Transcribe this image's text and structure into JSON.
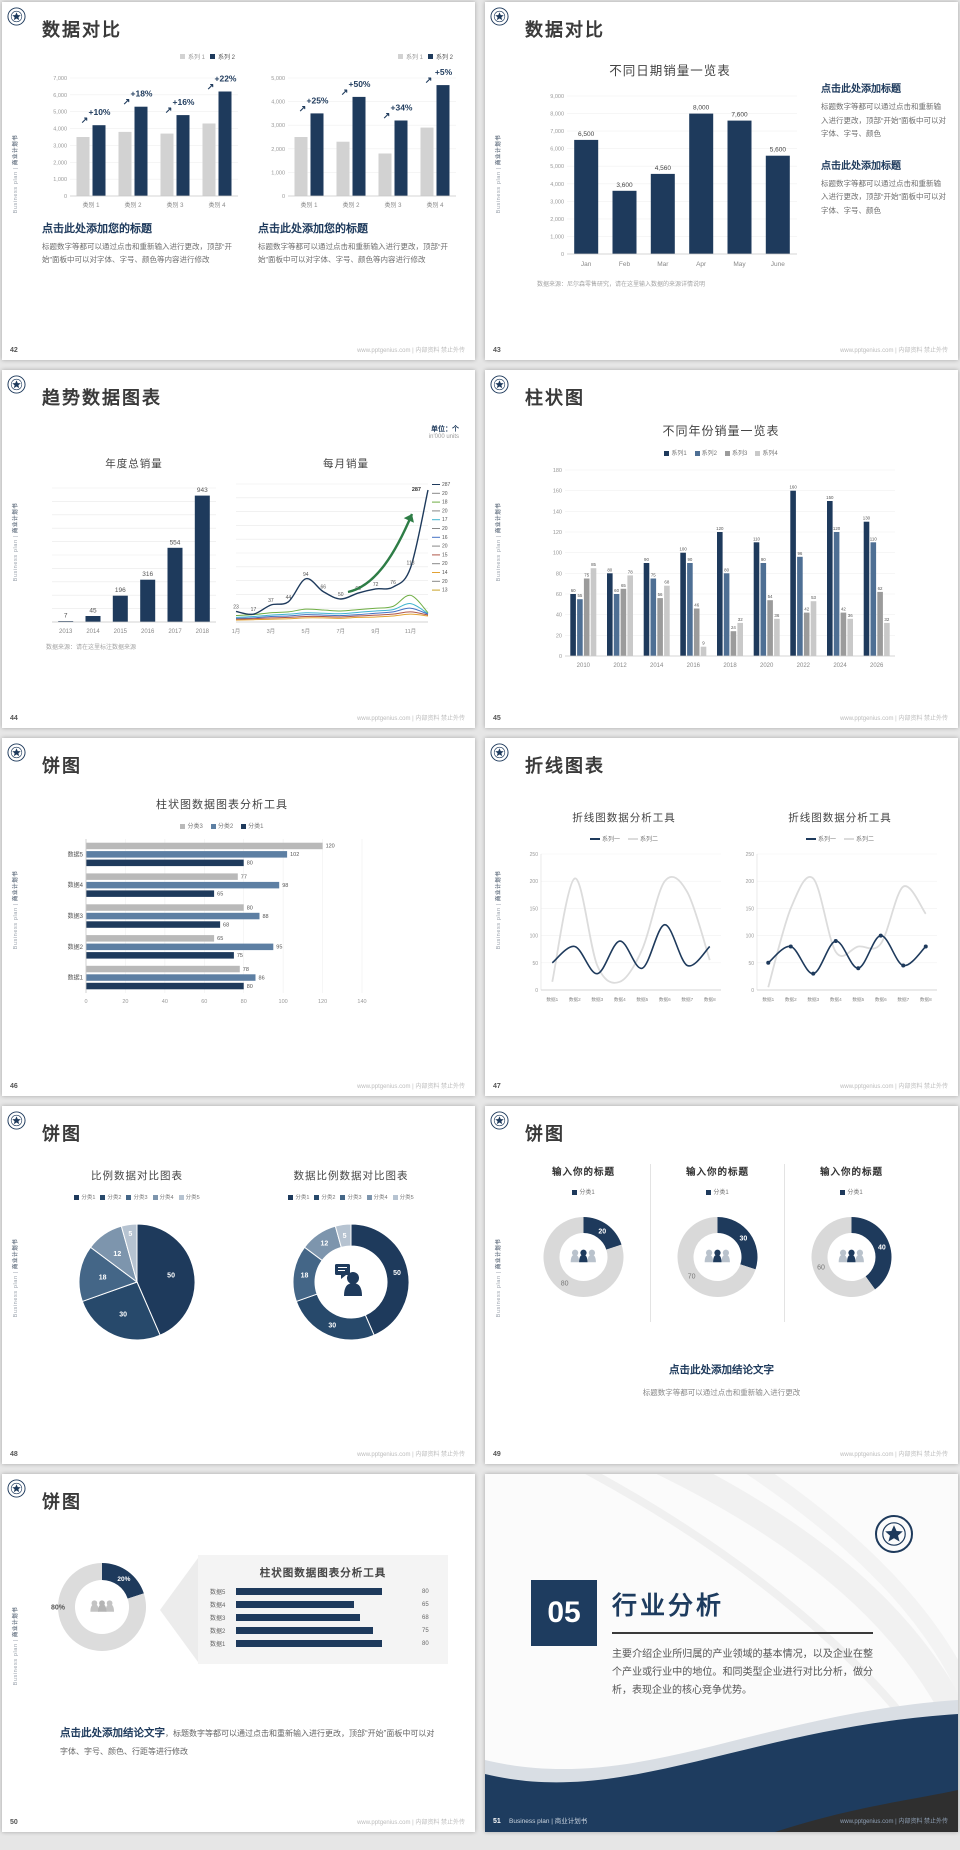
{
  "common": {
    "footer_url": "www.pptgenius.com | 内部资料 禁止外传",
    "sidebar_en": "Business plan | ",
    "sidebar_cn": "商业计划书"
  },
  "colors": {
    "navy": "#1e3a5c",
    "navy2": "#27496b",
    "steel": "#5d7fa3",
    "steel_light": "#7d95ad",
    "pale": "#b6c3d1",
    "gray_bar": "#d2d2d2",
    "gray_line": "#dcdcdc",
    "green": "#6fae44",
    "teal": "#3fb3cf",
    "blue": "#4472c4",
    "red": "#b0574a",
    "orange": "#e2a233",
    "arrow_green": "#2e7d46"
  },
  "slides": {
    "s42": {
      "page": "42",
      "title": "数据对比",
      "charts": [
        {
          "type": "grouped-bar",
          "legend": [
            "系列 1",
            "系列 2"
          ],
          "categories": [
            "类别 1",
            "类别 2",
            "类别 3",
            "类别 4"
          ],
          "series1": [
            3500,
            3800,
            3700,
            4300
          ],
          "series2": [
            4200,
            5300,
            4800,
            6200
          ],
          "growth": [
            "+10%",
            "+18%",
            "+16%",
            "+22%"
          ],
          "ymax": 7000,
          "ticks": [
            0,
            1000,
            2000,
            3000,
            4000,
            5000,
            6000,
            7000
          ]
        },
        {
          "type": "grouped-bar",
          "legend": [
            "系列 1",
            "系列 2"
          ],
          "categories": [
            "类别 1",
            "类别 2",
            "类别 3",
            "类别 4"
          ],
          "series1": [
            2500,
            2300,
            1800,
            2900
          ],
          "series2": [
            3500,
            4200,
            3200,
            4700
          ],
          "growth": [
            "+25%",
            "+50%",
            "+34%",
            "+5%"
          ],
          "ymax": 5000,
          "ticks": [
            0,
            1000,
            2000,
            3000,
            4000,
            5000
          ]
        }
      ],
      "block_title": "点击此处添加您的标题",
      "block_body": "标题数字等都可以通过点击和重新输入进行更改，顶部“开始”面板中可以对字体、字号、颜色等内容进行修改"
    },
    "s43": {
      "page": "43",
      "title": "数据对比",
      "chart": {
        "type": "bar",
        "title": "不同日期销量一览表",
        "categories": [
          "Jan",
          "Feb",
          "Mar",
          "Apr",
          "May",
          "June"
        ],
        "values": [
          6500,
          3600,
          4560,
          8000,
          7600,
          5600
        ],
        "labels": [
          "6,500",
          "3,600",
          "4,560",
          "8,000",
          "7,600",
          "5,600"
        ],
        "ymax": 9000,
        "tick_step": 1000
      },
      "note": "数据来源：尼尔森零售研究，请在这里输入数据的来源详情说明",
      "blocks": [
        {
          "title": "点击此处添加标题",
          "body": "标题数字等都可以通过点击和重新输入进行更改，顶部“开始”面板中可以对字体、字号、颜色"
        },
        {
          "title": "点击此处添加标题",
          "body": "标题数字等都可以通过点击和重新输入进行更改，顶部“开始”面板中可以对字体、字号、颜色"
        }
      ]
    },
    "s44": {
      "page": "44",
      "title": "趋势数据图表",
      "unit_label": "单位：个",
      "unit_sub": "in'000 units",
      "bar": {
        "type": "bar",
        "title": "年度总销量",
        "categories": [
          "2013",
          "2014",
          "2015",
          "2016",
          "2017",
          "2018"
        ],
        "values": [
          7,
          45,
          196,
          316,
          554,
          943
        ],
        "ymax": 1000
      },
      "line": {
        "type": "line",
        "title": "每月销量",
        "x_labels": [
          "1月",
          "3月",
          "5月",
          "7月",
          "9月",
          "11月"
        ],
        "main_series": [
          23,
          17,
          37,
          44,
          94,
          66,
          50,
          63,
          72,
          76,
          118,
          287
        ],
        "other_series": [
          {
            "color": "#6fae44",
            "values": [
              14,
              16,
              20,
              22,
              28,
              26,
              24,
              27,
              30,
              34,
              58,
              20
            ]
          },
          {
            "color": "#3fb3cf",
            "values": [
              10,
              12,
              15,
              17,
              20,
              19,
              18,
              21,
              24,
              27,
              40,
              18
            ]
          },
          {
            "color": "#4472c4",
            "values": [
              8,
              9,
              12,
              13,
              16,
              15,
              14,
              16,
              19,
              22,
              30,
              17
            ]
          },
          {
            "color": "#b0574a",
            "values": [
              6,
              7,
              9,
              10,
              12,
              12,
              11,
              13,
              15,
              17,
              22,
              15
            ]
          },
          {
            "color": "#e2a233",
            "values": [
              4,
              5,
              6,
              7,
              9,
              9,
              8,
              10,
              11,
              13,
              17,
              13
            ]
          }
        ],
        "end_labels": [
          "287",
          "20",
          "18",
          "20",
          "17",
          "20",
          "16",
          "20",
          "15",
          "20",
          "14",
          "20",
          "13"
        ],
        "ymax": 300
      },
      "note": "数据来源：请在这里标注数据来源"
    },
    "s45": {
      "page": "45",
      "title": "柱状图",
      "chart": {
        "type": "grouped-bar",
        "title": "不同年份销量一览表",
        "legend": [
          "系列1",
          "系列2",
          "系列3",
          "系列4"
        ],
        "categories": [
          "2010",
          "2012",
          "2014",
          "2016",
          "2018",
          "2020",
          "2022",
          "2024",
          "2026"
        ],
        "series": [
          [
            60,
            80,
            90,
            100,
            120,
            110,
            160,
            150,
            130
          ],
          [
            55,
            60,
            75,
            90,
            80,
            90,
            96,
            120,
            110
          ],
          [
            75,
            65,
            56,
            46,
            24,
            54,
            42,
            42,
            62
          ],
          [
            85,
            78,
            68,
            9,
            32,
            36,
            53,
            36,
            32
          ]
        ],
        "ymax": 180,
        "tick_step": 20
      }
    },
    "s46": {
      "page": "46",
      "title": "饼图",
      "chart": {
        "type": "hbar",
        "title": "柱状图数据图表分析工具",
        "legend": [
          "分类3",
          "分类2",
          "分类1"
        ],
        "categories": [
          "数据5",
          "数据4",
          "数据3",
          "数据2",
          "数据1"
        ],
        "series_gray": [
          120,
          77,
          80,
          65,
          78
        ],
        "series_steel": [
          102,
          98,
          88,
          95,
          86
        ],
        "series_navy": [
          80,
          65,
          68,
          75,
          80
        ],
        "xmax": 140,
        "ticks": [
          0,
          20,
          40,
          60,
          80,
          100,
          120,
          140
        ]
      }
    },
    "s47": {
      "page": "47",
      "title": "折线图表",
      "charts": [
        {
          "type": "line",
          "title": "折线图数据分析工具",
          "legend": [
            "系列一",
            "系列二"
          ],
          "markers": false,
          "x_labels": [
            "数据1",
            "数据2",
            "数据3",
            "数据4",
            "数据5",
            "数据6",
            "数据7",
            "数据8"
          ],
          "series_navy": [
            50,
            80,
            30,
            90,
            40,
            120,
            45,
            80
          ],
          "series_gray": [
            15,
            205,
            45,
            15,
            75,
            200,
            180,
            55
          ],
          "ymax": 250,
          "tick_step": 50
        },
        {
          "type": "line",
          "title": "折线图数据分析工具",
          "legend": [
            "系列一",
            "系列二"
          ],
          "markers": true,
          "x_labels": [
            "数据1",
            "数据2",
            "数据3",
            "数据4",
            "数据5",
            "数据6",
            "数据7",
            "数据8"
          ],
          "series_navy": [
            50,
            80,
            30,
            90,
            40,
            100,
            45,
            80
          ],
          "series_gray": [
            5,
            150,
            205,
            70,
            80,
            85,
            190,
            140
          ],
          "ymax": 250,
          "tick_step": 50
        }
      ]
    },
    "s48": {
      "page": "48",
      "title": "饼图",
      "pies": [
        {
          "type": "pie",
          "title": "比例数据对比图表",
          "legend": [
            "分类1",
            "分类2",
            "分类3",
            "分类4",
            "分类5"
          ],
          "values": [
            50,
            30,
            18,
            12,
            5
          ]
        },
        {
          "type": "donut",
          "title": "数据比例数据对比图表",
          "legend": [
            "分类1",
            "分类2",
            "分类3",
            "分类4",
            "分类5"
          ],
          "values": [
            50,
            30,
            18,
            12,
            5
          ],
          "center_icon": "presenter-icon"
        }
      ]
    },
    "s49": {
      "page": "49",
      "title": "饼图",
      "donuts": [
        {
          "title": "输入你的标题",
          "legend": "分类1",
          "value": 20,
          "rest": 80
        },
        {
          "title": "输入你的标题",
          "legend": "分类1",
          "value": 30,
          "rest": 70
        },
        {
          "title": "输入你的标题",
          "legend": "分类1",
          "value": 40,
          "rest": 60
        }
      ],
      "conclusion_title": "点击此处添加结论文字",
      "conclusion_body": "标题数字等都可以通过点击和重新输入进行更改"
    },
    "s50": {
      "page": "50",
      "title": "饼图",
      "donut": {
        "navy": 20,
        "gray": 80,
        "navy_label": "20%",
        "gray_label": "80%"
      },
      "panel": {
        "title": "柱状图数据图表分析工具",
        "max": 100,
        "items": [
          {
            "label": "数据5",
            "value": 80
          },
          {
            "label": "数据4",
            "value": 65
          },
          {
            "label": "数据3",
            "value": 68
          },
          {
            "label": "数据2",
            "value": 75
          },
          {
            "label": "数据1",
            "value": 80
          }
        ]
      },
      "conclusion_title": "点击此处添加结论文字",
      "conclusion_body": "，标题数字等都可以通过点击和重新输入进行更改，顶部“开始”面板中可以对字体、字号、颜色、行距等进行修改"
    },
    "s51": {
      "page": "51",
      "number": "05",
      "title": "行业分析",
      "body": "主要介绍企业所归属的产业领域的基本情况，以及企业在整个产业或行业中的地位。和同类型企业进行对比分析，做分析，表现企业的核心竞争优势。",
      "footer_left": "Business plan | 商业计划书"
    }
  }
}
